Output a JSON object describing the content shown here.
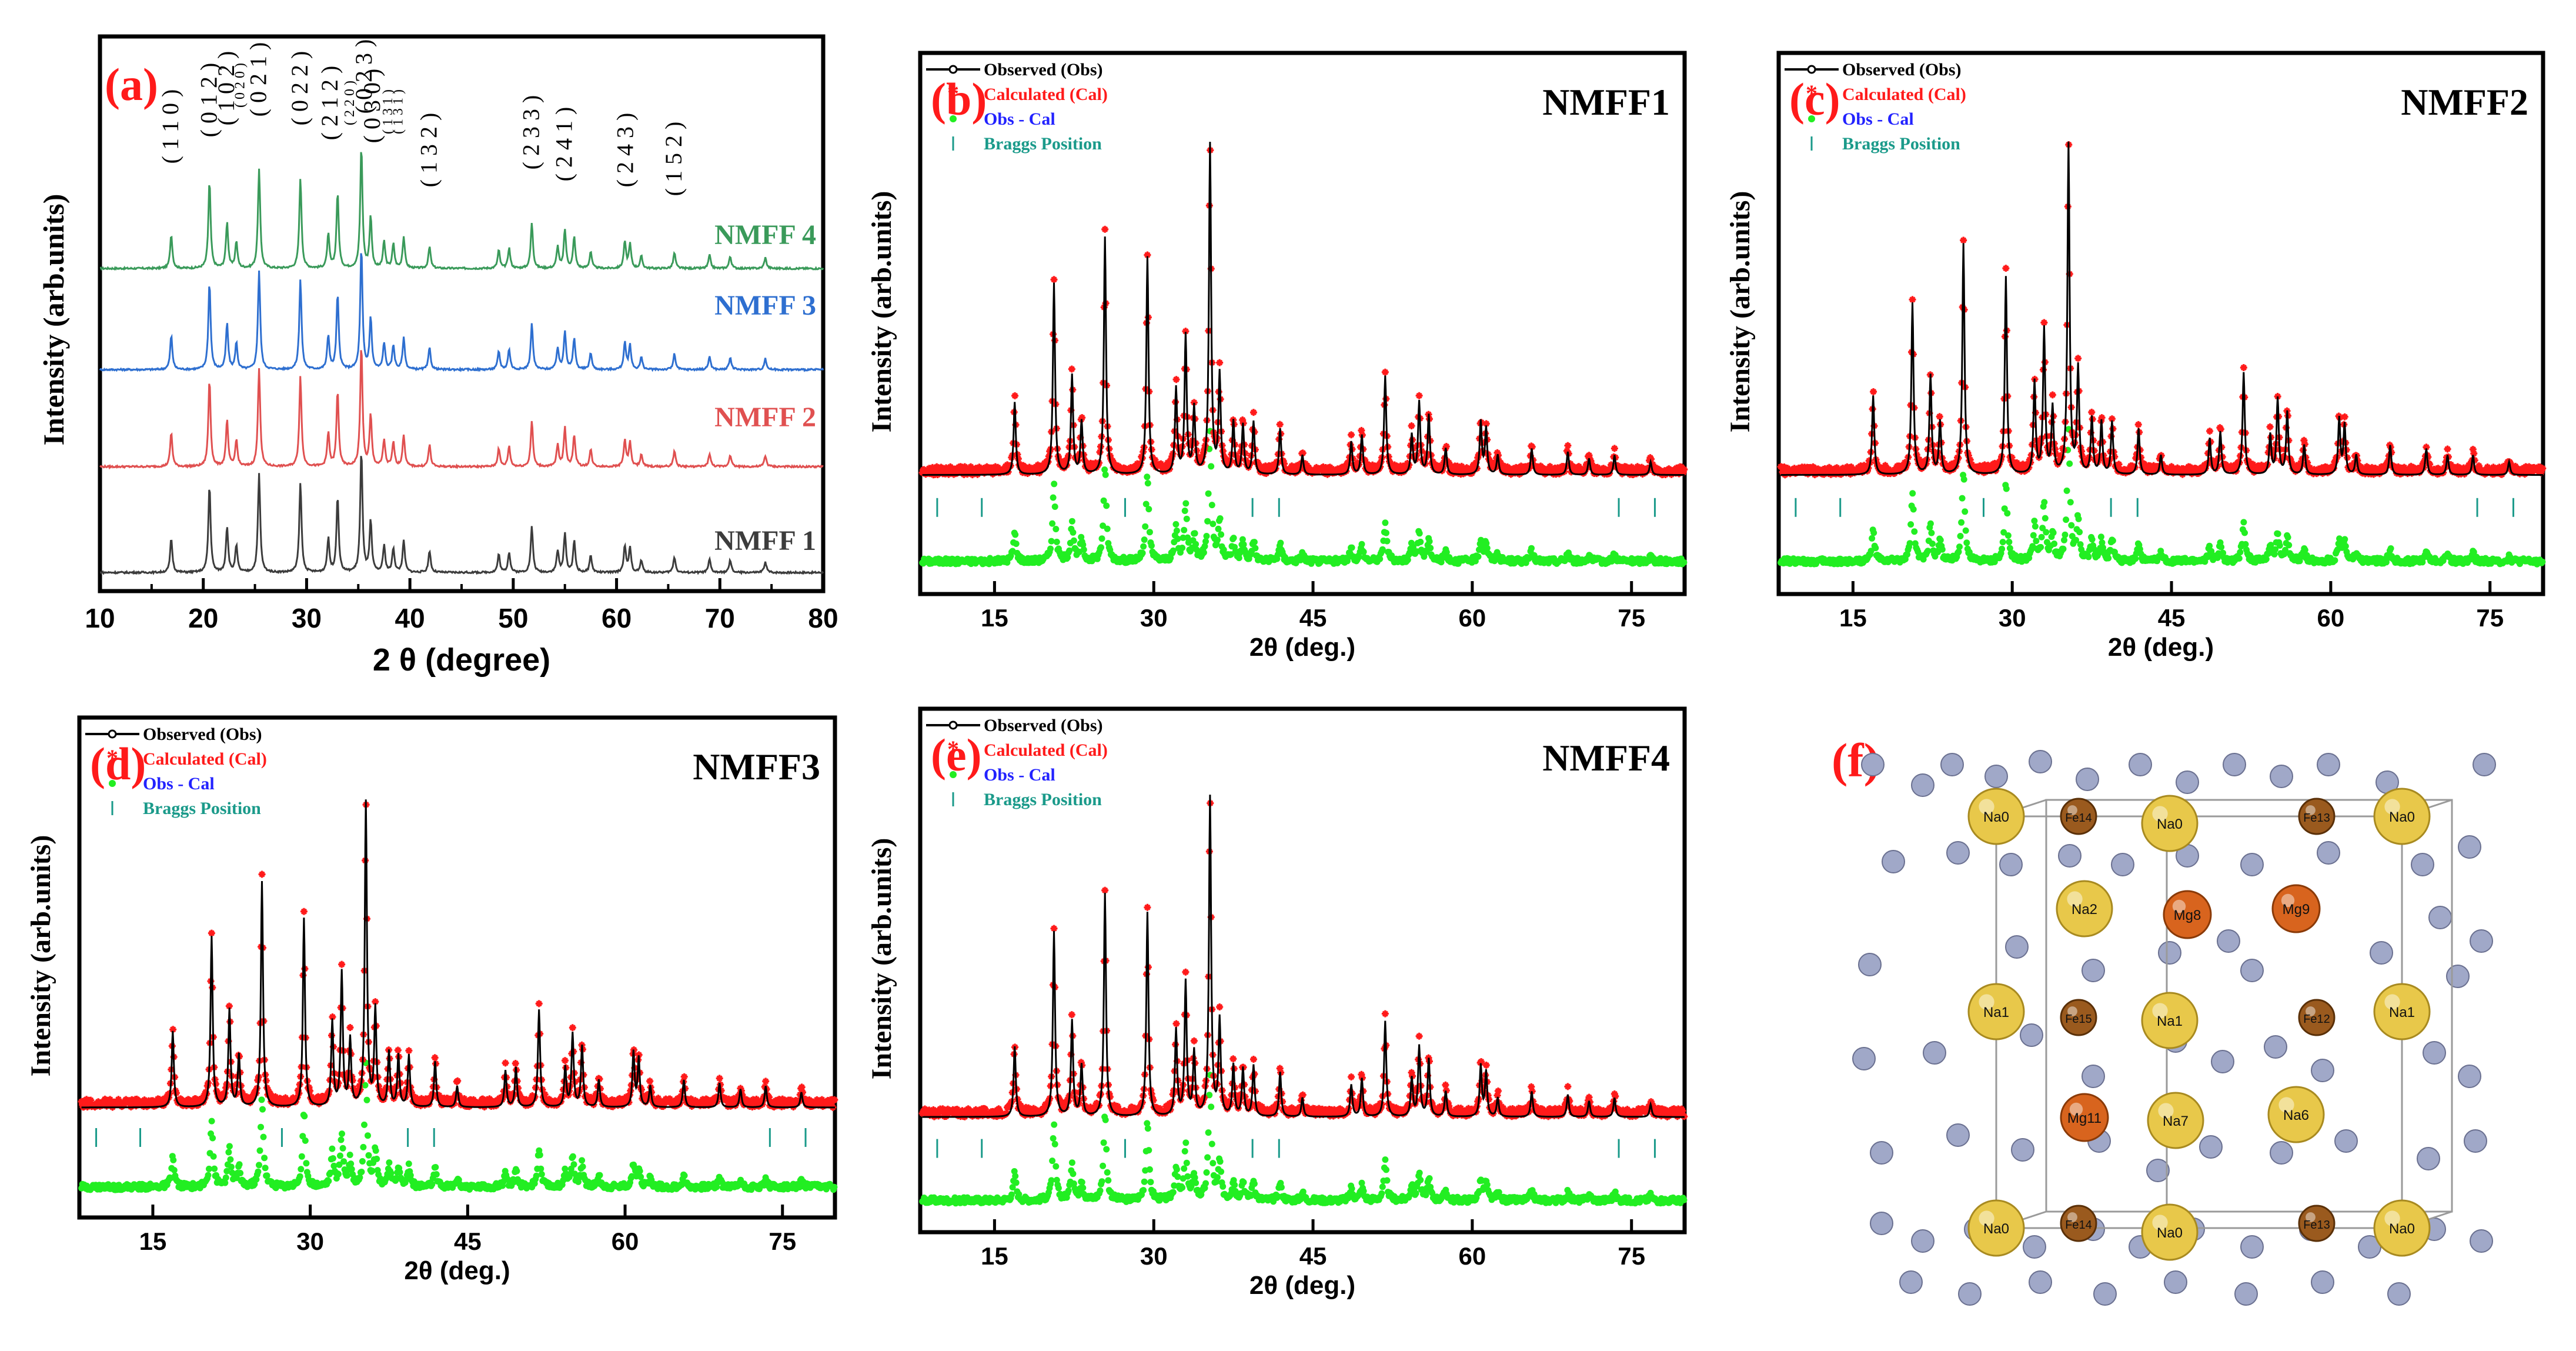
{
  "chart_data": [
    {
      "type": "line",
      "panel_label": "(a)",
      "xlabel": "2 θ (degree)",
      "ylabel": "Intensity (arb.units)",
      "xlim": [
        10,
        80
      ],
      "xticks": [
        10,
        20,
        30,
        40,
        50,
        60,
        70,
        80
      ],
      "peak_positions": [
        16.9,
        20.6,
        22.3,
        23.2,
        25.4,
        29.4,
        32.1,
        33.0,
        35.3,
        36.2,
        37.5,
        38.4,
        39.4,
        41.9,
        48.6,
        49.6,
        51.8,
        54.3,
        55.0,
        55.9,
        57.5,
        60.8,
        61.3,
        62.4,
        65.6,
        69.0,
        71.0,
        74.4
      ],
      "peak_heights": [
        0.28,
        0.72,
        0.38,
        0.22,
        0.82,
        0.75,
        0.28,
        0.62,
        1.0,
        0.42,
        0.22,
        0.2,
        0.26,
        0.18,
        0.15,
        0.17,
        0.38,
        0.18,
        0.32,
        0.26,
        0.14,
        0.22,
        0.2,
        0.1,
        0.13,
        0.11,
        0.1,
        0.09
      ],
      "series": [
        {
          "name": "NMFF 4",
          "color": "#3a9a5a"
        },
        {
          "name": "NMFF 3",
          "color": "#2e6fd0"
        },
        {
          "name": "NMFF 2",
          "color": "#e05050"
        },
        {
          "name": "NMFF 1",
          "color": "#3c3c3c"
        }
      ],
      "annotations": [
        {
          "text": "( 1 1 0 )",
          "x": 16.9
        },
        {
          "text": "( 0 1 2 )",
          "x": 20.6
        },
        {
          "text": "( 1 0 2 )",
          "x": 22.3
        },
        {
          "text": "( 0 2 0 )",
          "x": 23.3
        },
        {
          "text": "( 0 2 1 )",
          "x": 25.4
        },
        {
          "text": "( 0 2 2 )",
          "x": 29.4
        },
        {
          "text": "( 2 1 2 )",
          "x": 32.3
        },
        {
          "text": "( 2 2 0 )",
          "x": 33.9
        },
        {
          "text": "( 0 2 3 )",
          "x": 35.6
        },
        {
          "text": "( 0 3 0 )",
          "x": 36.4
        },
        {
          "text": "( 1 3 1 )",
          "x": 37.6
        },
        {
          "text": "( 1 3 1 )",
          "x": 38.6
        },
        {
          "text": "( 1 3 2 )",
          "x": 41.9
        },
        {
          "text": "( 2 3 3 )",
          "x": 51.8
        },
        {
          "text": "( 2 4 1 )",
          "x": 55.0
        },
        {
          "text": "( 2 4 3 )",
          "x": 60.9
        },
        {
          "text": "( 1 5 2 )",
          "x": 65.6
        }
      ]
    },
    {
      "type": "line",
      "panel_label": "(b)",
      "sample": "NMFF1",
      "xlabel": "2θ (deg.)",
      "ylabel": "Intensity (arb.units)",
      "xlim": [
        8,
        80
      ],
      "xticks": [
        15,
        30,
        45,
        60,
        75
      ],
      "legend": [
        "Observed (Obs)",
        "Calculated (Cal)",
        "Obs - Cal",
        "Braggs Position"
      ],
      "bragg_positions": [
        9.6,
        13.8,
        27.3,
        39.3,
        41.8,
        73.8,
        77.2
      ],
      "peak_positions": [
        16.9,
        20.6,
        22.3,
        23.2,
        25.4,
        29.4,
        32.1,
        33.0,
        33.8,
        35.3,
        36.2,
        37.5,
        38.4,
        39.4,
        41.9,
        44.0,
        48.6,
        49.6,
        51.8,
        54.3,
        55.0,
        55.9,
        57.5,
        60.8,
        61.3,
        62.4,
        65.6,
        69.0,
        71.0,
        73.4,
        76.8
      ],
      "peak_heights": [
        0.22,
        0.58,
        0.3,
        0.16,
        0.72,
        0.66,
        0.26,
        0.42,
        0.2,
        1.0,
        0.3,
        0.16,
        0.15,
        0.16,
        0.14,
        0.06,
        0.1,
        0.12,
        0.3,
        0.12,
        0.22,
        0.18,
        0.08,
        0.16,
        0.14,
        0.06,
        0.08,
        0.07,
        0.05,
        0.06,
        0.04
      ]
    },
    {
      "type": "line",
      "panel_label": "(c)",
      "sample": "NMFF2",
      "xlabel": "2θ (deg.)",
      "ylabel": "Intensity (arb.units)",
      "xlim": [
        8,
        80
      ],
      "xticks": [
        15,
        30,
        45,
        60,
        75
      ],
      "legend": [
        "Observed (Obs)",
        "Calculated (Cal)",
        "Obs - Cal",
        "Braggs Position"
      ],
      "bragg_positions": [
        9.6,
        13.8,
        27.3,
        39.3,
        41.8,
        73.8,
        77.2
      ],
      "peak_positions": [
        16.9,
        20.6,
        22.3,
        23.2,
        25.4,
        29.4,
        32.1,
        33.0,
        33.8,
        35.3,
        36.2,
        37.5,
        38.4,
        39.4,
        41.9,
        44.0,
        48.6,
        49.6,
        51.8,
        54.3,
        55.0,
        55.9,
        57.5,
        60.8,
        61.3,
        62.4,
        65.6,
        69.0,
        71.0,
        73.4,
        76.8
      ],
      "peak_heights": [
        0.24,
        0.52,
        0.3,
        0.16,
        0.7,
        0.6,
        0.28,
        0.44,
        0.2,
        1.0,
        0.32,
        0.17,
        0.16,
        0.16,
        0.14,
        0.06,
        0.11,
        0.13,
        0.31,
        0.12,
        0.23,
        0.19,
        0.09,
        0.17,
        0.15,
        0.06,
        0.09,
        0.08,
        0.06,
        0.06,
        0.04
      ]
    },
    {
      "type": "line",
      "panel_label": "(d)",
      "sample": "NMFF3",
      "xlabel": "2θ (deg.)",
      "ylabel": "Intensity (arb.units)",
      "xlim": [
        8,
        80
      ],
      "xticks": [
        15,
        30,
        45,
        60,
        75
      ],
      "legend": [
        "Observed (Obs)",
        "Calculated (Cal)",
        "Obs - Cal",
        "Braggs Position"
      ],
      "bragg_positions": [
        9.6,
        13.8,
        27.3,
        39.3,
        41.8,
        73.8,
        77.2
      ],
      "peak_positions": [
        16.9,
        20.6,
        22.3,
        23.2,
        25.4,
        29.4,
        32.1,
        33.0,
        33.8,
        35.3,
        36.2,
        37.5,
        38.4,
        39.4,
        41.9,
        44.0,
        48.6,
        49.6,
        51.8,
        54.3,
        55.0,
        55.9,
        57.5,
        60.8,
        61.3,
        62.4,
        65.6,
        69.0,
        71.0,
        73.4,
        76.8
      ],
      "peak_heights": [
        0.25,
        0.56,
        0.32,
        0.17,
        0.74,
        0.62,
        0.28,
        0.44,
        0.22,
        1.0,
        0.32,
        0.18,
        0.17,
        0.17,
        0.15,
        0.07,
        0.12,
        0.13,
        0.32,
        0.13,
        0.24,
        0.2,
        0.09,
        0.18,
        0.16,
        0.07,
        0.09,
        0.08,
        0.06,
        0.07,
        0.05
      ]
    },
    {
      "type": "line",
      "panel_label": "(e)",
      "sample": "NMFF4",
      "xlabel": "2θ (deg.)",
      "ylabel": "Intensity (arb.units)",
      "xlim": [
        8,
        80
      ],
      "xticks": [
        15,
        30,
        45,
        60,
        75
      ],
      "legend": [
        "Observed (Obs)",
        "Calculated (Cal)",
        "Obs - Cal",
        "Braggs Position"
      ],
      "bragg_positions": [
        9.6,
        13.8,
        27.3,
        39.3,
        41.8,
        73.8,
        77.2
      ],
      "peak_positions": [
        16.9,
        20.6,
        22.3,
        23.2,
        25.4,
        29.4,
        32.1,
        33.0,
        33.8,
        35.3,
        36.2,
        37.5,
        38.4,
        39.4,
        41.9,
        44.0,
        48.6,
        49.6,
        51.8,
        54.3,
        55.0,
        55.9,
        57.5,
        60.8,
        61.3,
        62.4,
        65.6,
        69.0,
        71.0,
        73.4,
        76.8
      ],
      "peak_heights": [
        0.22,
        0.58,
        0.3,
        0.16,
        0.7,
        0.64,
        0.27,
        0.42,
        0.2,
        1.0,
        0.3,
        0.16,
        0.15,
        0.16,
        0.14,
        0.06,
        0.1,
        0.12,
        0.3,
        0.12,
        0.22,
        0.18,
        0.08,
        0.16,
        0.14,
        0.06,
        0.08,
        0.07,
        0.05,
        0.06,
        0.04
      ]
    }
  ],
  "figure": {
    "legend_colors": {
      "observed": "#000000",
      "calculated": "#ff1a1a",
      "difference": "#22ee22",
      "bragg": "#1a9a8a",
      "difference_label": "#2222ff"
    }
  },
  "structure": {
    "panel_label": "(f)",
    "atom_labels": [
      "Na0",
      "Fe14",
      "Na0",
      "Fe13",
      "Na0",
      "Na2",
      "Mg8",
      "Mg9",
      "Na1",
      "Fe15",
      "Na1",
      "Fe12",
      "Na1",
      "Mg11",
      "Na7",
      "Na6",
      "Na0",
      "Fe14",
      "Na0",
      "Fe13",
      "Na0"
    ],
    "colors": {
      "sodium": "#e8c84a",
      "iron": "#9a5a1e",
      "magnesium": "#d8641e",
      "fluorine": "#a0a8c8"
    }
  }
}
